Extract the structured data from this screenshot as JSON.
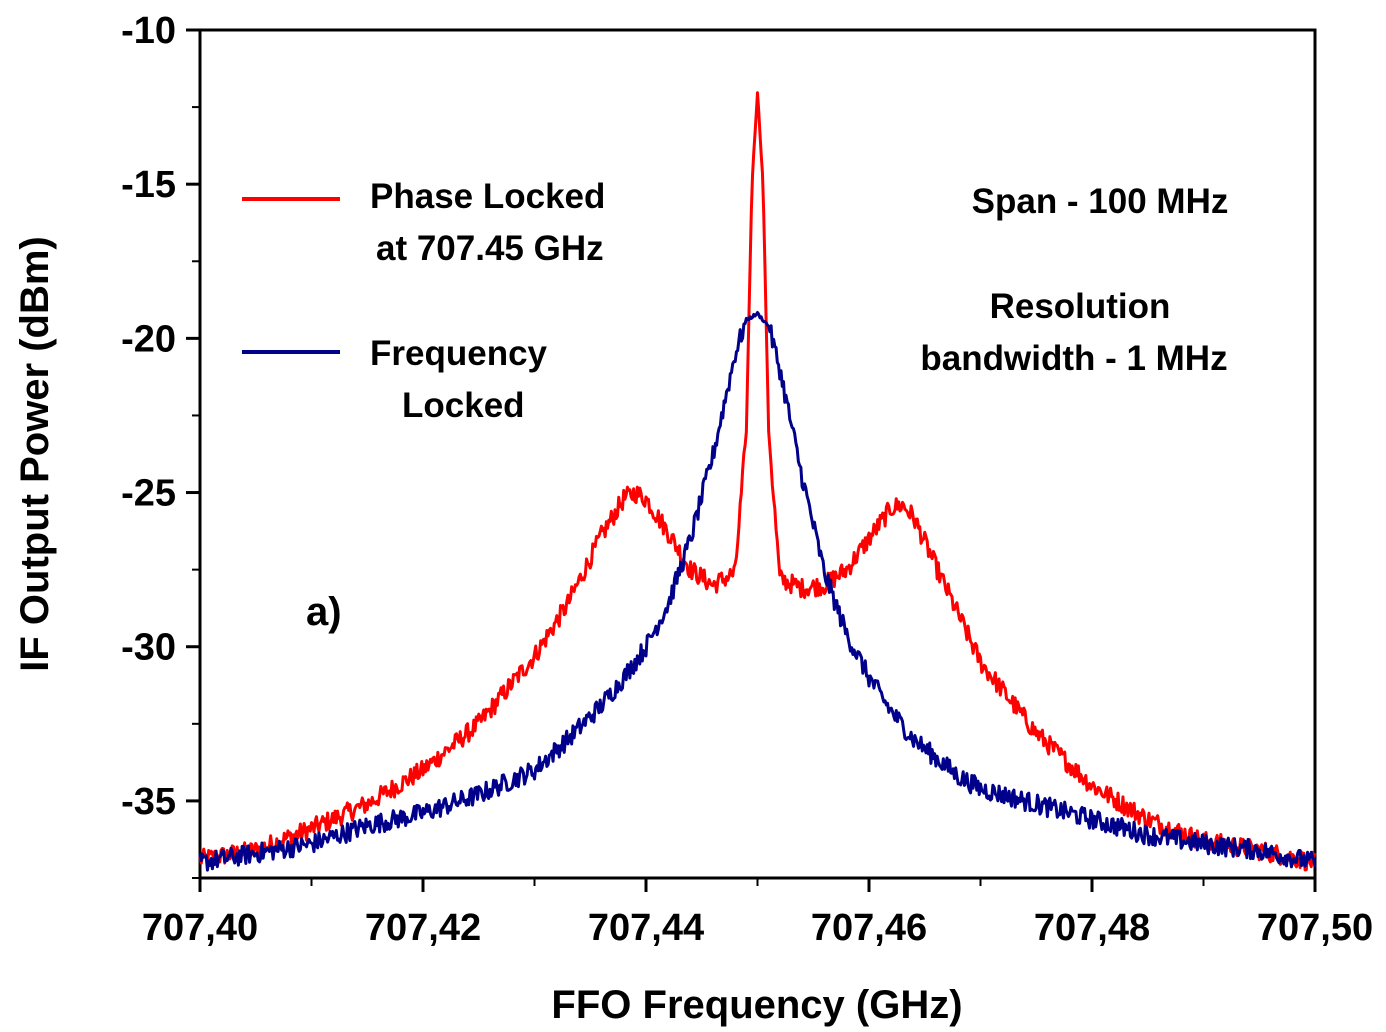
{
  "chart_data": {
    "type": "line",
    "title": "",
    "xlabel": "FFO Frequency (GHz)",
    "ylabel": "IF Output Power (dBm)",
    "xlim": [
      707.4,
      707.5
    ],
    "ylim": [
      -37.5,
      -10
    ],
    "x_ticks": [
      "707,40",
      "707,42",
      "707,44",
      "707,46",
      "707,48",
      "707,50"
    ],
    "y_ticks": [
      "-10",
      "-15",
      "-20",
      "-25",
      "-30",
      "-35"
    ],
    "x_tick_values": [
      707.4,
      707.42,
      707.44,
      707.46,
      707.48,
      707.5
    ],
    "y_tick_values": [
      -10,
      -15,
      -20,
      -25,
      -30,
      -35
    ],
    "grid": false,
    "legend_position": "top-left",
    "series": [
      {
        "name": "Phase Locked at 707.45 GHz",
        "legend_lines": [
          "Phase Locked",
          "at 707.45 GHz"
        ],
        "color": "#ff0000",
        "x": [
          707.4,
          707.405,
          707.41,
          707.415,
          707.42,
          707.425,
          707.43,
          707.433,
          707.436,
          707.438,
          707.439,
          707.44,
          707.442,
          707.444,
          707.446,
          707.448,
          707.449,
          707.4495,
          707.45,
          707.4505,
          707.451,
          707.452,
          707.454,
          707.456,
          707.458,
          707.46,
          707.462,
          707.463,
          707.464,
          707.466,
          707.47,
          707.475,
          707.48,
          707.485,
          707.49,
          707.495,
          707.5
        ],
        "y": [
          -36.9,
          -36.6,
          -35.9,
          -35.1,
          -34.0,
          -32.5,
          -30.3,
          -28.6,
          -26.4,
          -25.2,
          -25.0,
          -25.2,
          -26.3,
          -27.5,
          -28.0,
          -27.6,
          -23.0,
          -15.0,
          -12.0,
          -15.0,
          -23.0,
          -27.8,
          -28.1,
          -28.0,
          -27.5,
          -26.5,
          -25.5,
          -25.4,
          -25.8,
          -27.4,
          -30.5,
          -32.8,
          -34.5,
          -35.6,
          -36.3,
          -36.6,
          -37.0
        ]
      },
      {
        "name": "Frequency Locked",
        "legend_lines": [
          "Frequency",
          "Locked"
        ],
        "color": "#00008b",
        "x": [
          707.4,
          707.405,
          707.41,
          707.415,
          707.42,
          707.425,
          707.43,
          707.433,
          707.436,
          707.438,
          707.44,
          707.442,
          707.444,
          707.446,
          707.448,
          707.449,
          707.45,
          707.451,
          707.452,
          707.454,
          707.456,
          707.458,
          707.46,
          707.462,
          707.464,
          707.466,
          707.468,
          707.47,
          707.475,
          707.48,
          707.485,
          707.49,
          707.495,
          707.5
        ],
        "y": [
          -37.0,
          -36.7,
          -36.4,
          -35.8,
          -35.4,
          -34.8,
          -34.0,
          -33.0,
          -31.9,
          -31.0,
          -30.0,
          -28.6,
          -26.5,
          -23.8,
          -20.5,
          -19.4,
          -19.2,
          -19.6,
          -21.0,
          -24.5,
          -27.6,
          -29.6,
          -31.0,
          -32.1,
          -33.0,
          -33.6,
          -34.2,
          -34.6,
          -35.1,
          -35.6,
          -36.1,
          -36.4,
          -36.6,
          -37.0
        ]
      }
    ],
    "annotations": [
      {
        "text": "Span - 100 MHz"
      },
      {
        "text": "Resolution"
      },
      {
        "text": "bandwidth - 1 MHz"
      },
      {
        "text": "a)"
      }
    ]
  }
}
